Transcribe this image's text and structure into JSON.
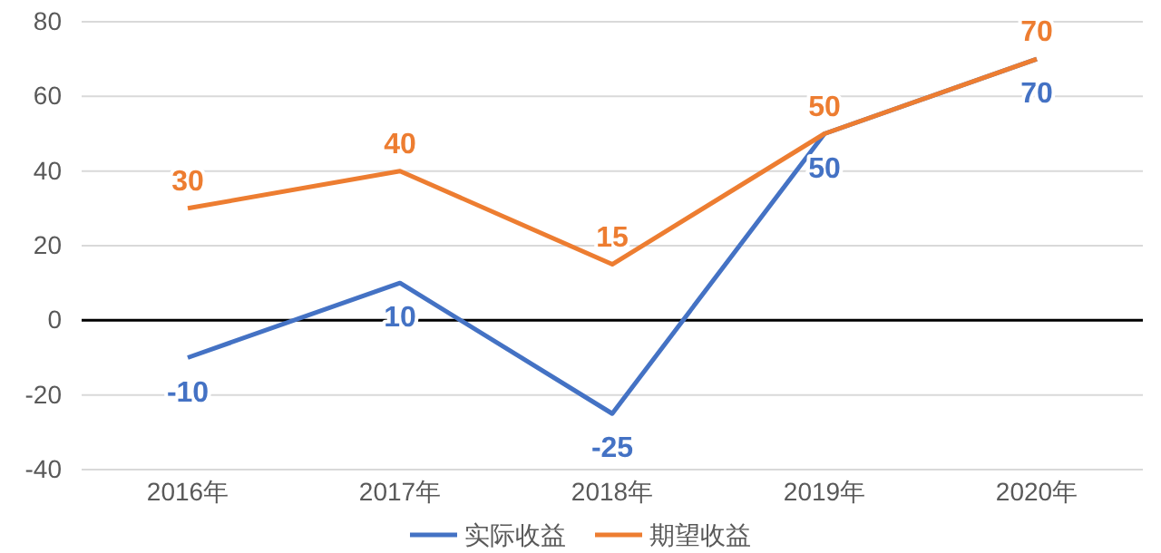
{
  "chart_data": {
    "type": "line",
    "categories": [
      "2016年",
      "2017年",
      "2018年",
      "2019年",
      "2020年"
    ],
    "series": [
      {
        "name": "实际收益",
        "color": "#4472c4",
        "values": [
          -10,
          10,
          -25,
          50,
          70
        ]
      },
      {
        "name": "期望收益",
        "color": "#ed7d31",
        "values": [
          30,
          40,
          15,
          50,
          70
        ]
      }
    ],
    "ylim": [
      -40,
      80
    ],
    "yticks": [
      -40,
      -20,
      0,
      20,
      40,
      60,
      80
    ],
    "grid": "y",
    "legend": "bottom",
    "data_labels": true,
    "marker": "none",
    "line_style": "solid"
  }
}
